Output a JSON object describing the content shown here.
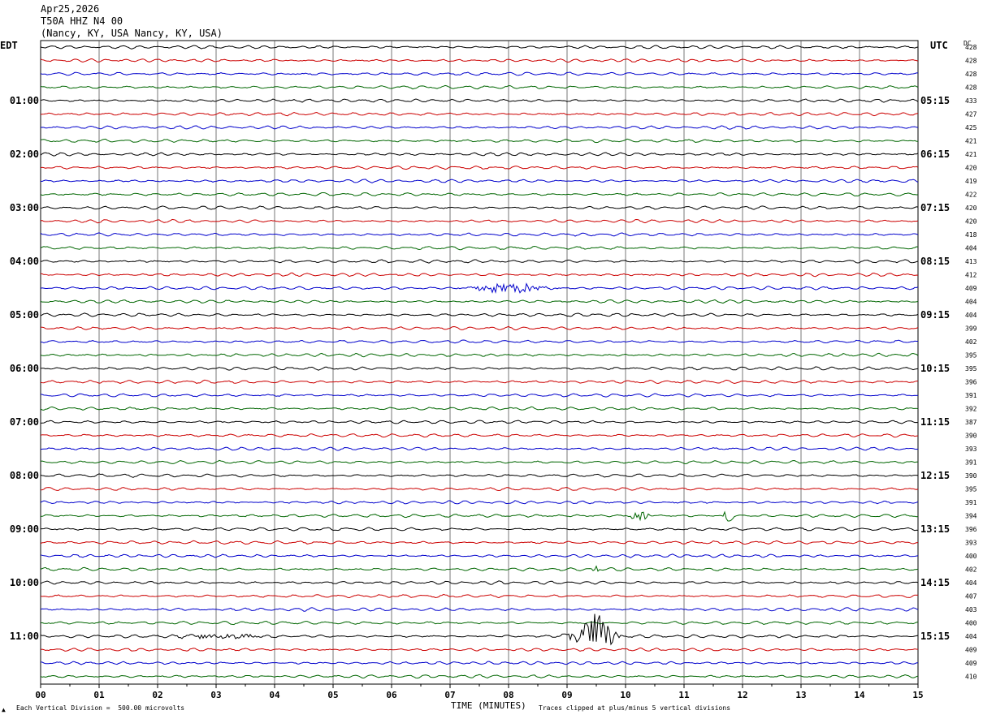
{
  "header": {
    "date": "Apr25,2026",
    "station": "T50A HHZ N4 00",
    "location": "(Nancy, KY, USA Nancy, KY, USA)"
  },
  "left_axis_label": "EDT",
  "right_axis_label": "UTC",
  "dc_label": "DC",
  "footer": {
    "scale_note": "Each Vertical Division =  500.00 microvolts",
    "clip_note": "Traces clipped at plus/minus 5 vertical divisions",
    "corner_mark": "▲"
  },
  "colors": {
    "trace_cycle": [
      "#000000",
      "#cc0000",
      "#0000cc",
      "#006600"
    ],
    "grid": "#000000"
  },
  "chart_data": {
    "type": "line",
    "subtype": "helicorder",
    "xlabel": "TIME (MINUTES)",
    "x_ticks": [
      "00",
      "01",
      "02",
      "03",
      "04",
      "05",
      "06",
      "07",
      "08",
      "09",
      "10",
      "11",
      "12",
      "13",
      "14",
      "15"
    ],
    "xlim": [
      0,
      15
    ],
    "minutes_per_line": 15,
    "num_lines": 48,
    "left_time_labels": [
      "01:00",
      "02:00",
      "03:00",
      "04:00",
      "05:00",
      "06:00",
      "07:00",
      "08:00",
      "09:00",
      "10:00",
      "11:00"
    ],
    "right_time_labels": [
      "05:15",
      "06:15",
      "07:15",
      "08:15",
      "09:15",
      "10:15",
      "11:15",
      "12:15",
      "13:15",
      "14:15",
      "15:15"
    ],
    "hour_label_lines": [
      4,
      8,
      12,
      16,
      20,
      24,
      28,
      32,
      36,
      40,
      44
    ],
    "dc_offsets": [
      428,
      428,
      428,
      428,
      433,
      427,
      425,
      421,
      421,
      420,
      419,
      422,
      420,
      420,
      418,
      404,
      413,
      412,
      409,
      404,
      404,
      399,
      402,
      395,
      395,
      396,
      391,
      392,
      387,
      390,
      393,
      391,
      390,
      395,
      391,
      394,
      396,
      393,
      400,
      402,
      404,
      407,
      403,
      400,
      404,
      409,
      409,
      410
    ],
    "events": [
      {
        "line": 18,
        "start_min": 7.0,
        "end_min": 9.0,
        "peak_divisions": 1.2
      },
      {
        "line": 35,
        "start_min": 10.0,
        "end_min": 10.5,
        "peak_divisions": 1.5
      },
      {
        "line": 35,
        "start_min": 11.6,
        "end_min": 11.9,
        "peak_divisions": 1.3
      },
      {
        "line": 39,
        "start_min": 9.4,
        "end_min": 9.6,
        "peak_divisions": 0.8
      },
      {
        "line": 44,
        "start_min": 2.0,
        "end_min": 4.2,
        "peak_divisions": 0.6
      },
      {
        "line": 44,
        "start_min": 8.9,
        "end_min": 10.0,
        "peak_divisions": 5.0
      }
    ]
  }
}
